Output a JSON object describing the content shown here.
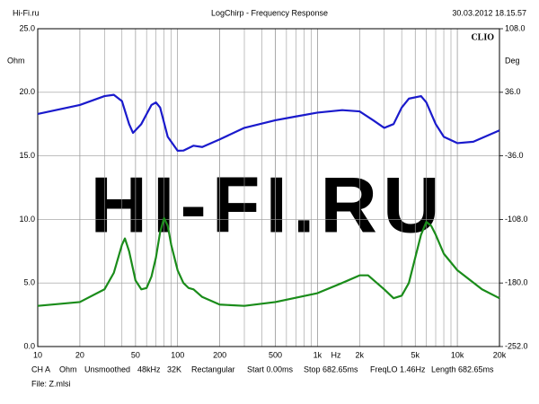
{
  "header": {
    "left": "Hi-Fi.ru",
    "center": "LogChirp - Frequency Response",
    "right": "30.03.2012 18.15.57"
  },
  "chart_data": {
    "type": "line",
    "watermark": "HI-FI.RU",
    "brand": "CLIO",
    "ylabel": "Ohm",
    "y2label": "Deg",
    "xlabel": "Hz",
    "xscale": "log",
    "grid": true,
    "xlim": [
      10,
      20000
    ],
    "ylim": [
      0,
      25
    ],
    "y2lim": [
      -252,
      108
    ],
    "xticks": [
      10,
      20,
      50,
      100,
      200,
      500,
      {
        "value": 1000,
        "label": "1k"
      },
      {
        "value": 2000,
        "label": "2k"
      },
      {
        "value": 5000,
        "label": "5k"
      },
      {
        "value": 10000,
        "label": "10k"
      },
      {
        "value": 20000,
        "label": "20k"
      }
    ],
    "yticks": [
      {
        "value": 0,
        "label": "0.0"
      },
      {
        "value": 5,
        "label": "5.0"
      },
      {
        "value": 10,
        "label": "10.0"
      },
      {
        "value": 15,
        "label": "15.0"
      },
      {
        "value": 20,
        "label": "20.0"
      },
      {
        "value": 25,
        "label": "25.0"
      }
    ],
    "y2ticks": [
      {
        "value": -252,
        "label": "-252.0"
      },
      {
        "value": -180,
        "label": "-180.0"
      },
      {
        "value": -108,
        "label": "-108.0"
      },
      {
        "value": -36,
        "label": "-36.0"
      },
      {
        "value": 36,
        "label": "36.0"
      },
      {
        "value": 108,
        "label": "108.0"
      }
    ],
    "series": [
      {
        "color": "#1a8c1a",
        "x": [
          10,
          20,
          30,
          35,
          40,
          42,
          45,
          50,
          55,
          60,
          65,
          70,
          75,
          80,
          85,
          90,
          100,
          110,
          120,
          130,
          150,
          200,
          300,
          500,
          1000,
          1500,
          2000,
          2300,
          3000,
          3500,
          4000,
          4500,
          5000,
          5500,
          6000,
          6500,
          7000,
          8000,
          10000,
          15000,
          20000
        ],
        "values": [
          3.2,
          3.5,
          4.5,
          5.8,
          8.0,
          8.5,
          7.5,
          5.2,
          4.5,
          4.6,
          5.5,
          7.0,
          9.0,
          10.1,
          9.5,
          8.0,
          6.0,
          5.0,
          4.6,
          4.5,
          3.9,
          3.3,
          3.2,
          3.5,
          4.2,
          5.0,
          5.6,
          5.6,
          4.5,
          3.8,
          4.0,
          5.0,
          7.0,
          8.8,
          9.8,
          9.5,
          8.8,
          7.3,
          6.0,
          4.5,
          3.8
        ]
      },
      {
        "color": "#1a1acc",
        "axis": "y2",
        "x": [
          10,
          20,
          30,
          35,
          40,
          45,
          48,
          55,
          65,
          70,
          75,
          85,
          100,
          110,
          130,
          150,
          200,
          300,
          500,
          700,
          1000,
          1500,
          2000,
          2500,
          3000,
          3500,
          4000,
          4500,
          5500,
          6000,
          7000,
          8000,
          10000,
          13000,
          20000
        ],
        "values": [
          11.5,
          21.6,
          31.7,
          33.1,
          26,
          0,
          -10,
          0,
          21.6,
          24.5,
          18.7,
          -14.4,
          -30.2,
          -30,
          -24.5,
          -26,
          -17.3,
          -4.3,
          4.3,
          8.6,
          13,
          15.8,
          14.4,
          4.3,
          -4.3,
          0,
          18.7,
          28.8,
          31.7,
          24.5,
          0,
          -14.4,
          -21.6,
          -20,
          -7.2
        ]
      }
    ]
  },
  "footer": {
    "items": [
      "CH A",
      "Ohm",
      "Unsmoothed",
      "48kHz",
      "32K",
      "Rectangular",
      "Start 0.00ms",
      "Stop 682.65ms",
      "FreqLO 1.46Hz",
      "Length 682.65ms"
    ],
    "file": "File: Z.mlsi"
  }
}
